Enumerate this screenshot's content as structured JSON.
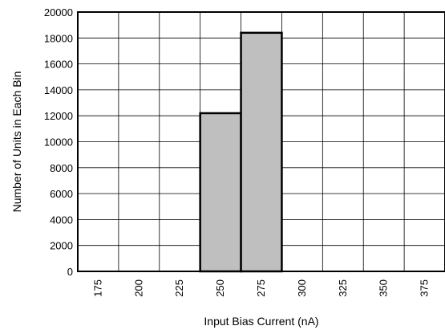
{
  "chart_data": {
    "type": "bar",
    "title": "",
    "xlabel": "Input Bias Current (nA)",
    "ylabel": "Number of Units in Each Bin",
    "categories": [
      "175",
      "200",
      "225",
      "250",
      "275",
      "300",
      "325",
      "350",
      "375"
    ],
    "values": [
      0,
      0,
      0,
      12200,
      18400,
      0,
      0,
      0,
      0
    ],
    "ylim": [
      0,
      20000
    ],
    "yticks": [
      0,
      2000,
      4000,
      6000,
      8000,
      10000,
      12000,
      14000,
      16000,
      18000,
      20000
    ],
    "grid": true,
    "colors": {
      "bar_fill": "#bfbfbf",
      "bar_stroke": "#000000",
      "grid": "#000000"
    }
  }
}
